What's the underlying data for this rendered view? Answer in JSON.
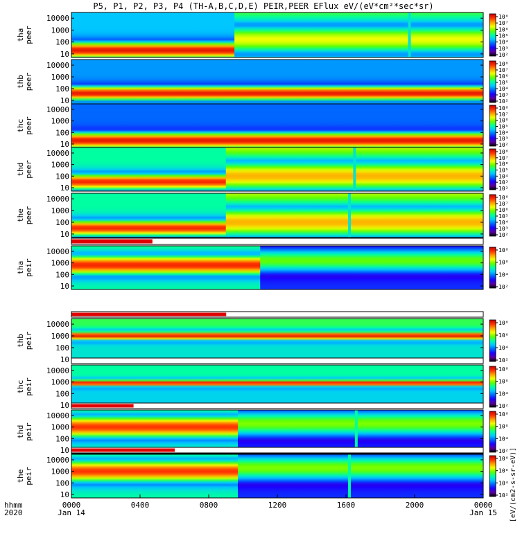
{
  "chart_data": {
    "type": "heatmap",
    "title": "P5, P1, P2, P3, P4 (TH-A,B,C,D,E) PEIR,PEER EFlux eV/(eV*cm²*sec*sr)",
    "time_axis": {
      "label_line1": "hhmm",
      "label_line2": "2020",
      "range_hours": [
        0,
        24
      ],
      "ticks": [
        {
          "hour": 0,
          "label": "0000",
          "sublabel": "Jan 14"
        },
        {
          "hour": 4,
          "label": "0400",
          "sublabel": ""
        },
        {
          "hour": 8,
          "label": "0800",
          "sublabel": ""
        },
        {
          "hour": 12,
          "label": "1200",
          "sublabel": ""
        },
        {
          "hour": 16,
          "label": "1600",
          "sublabel": ""
        },
        {
          "hour": 20,
          "label": "2000",
          "sublabel": ""
        },
        {
          "hour": 24,
          "label": "0000",
          "sublabel": "Jan 15"
        }
      ]
    },
    "energy_axis": {
      "scale": "log",
      "range_eV": [
        5,
        30000
      ],
      "tick_values": [
        10,
        100,
        1000,
        10000
      ],
      "tick_labels": [
        "10",
        "100",
        "1000",
        "10000"
      ]
    },
    "colorbar": {
      "scale": "log",
      "unit_label": "[eV/(cm2-s-sr-eV)]",
      "ticks_electron": [
        "10²",
        "10³",
        "10⁴",
        "10⁵",
        "10⁶",
        "10⁷",
        "10⁸"
      ],
      "ticks_ion": [
        "10²",
        "10⁴",
        "10⁶",
        "10⁸"
      ]
    },
    "colormap": [
      "#000000",
      "#5a00a0",
      "#1a00ff",
      "#0066ff",
      "#00c8ff",
      "#00ffa0",
      "#60ff00",
      "#f0ff00",
      "#ffa000",
      "#ff3000",
      "#c40000"
    ],
    "panels": [
      {
        "label_line1": "tha",
        "label_line2": "peer",
        "species": "electron",
        "flag_end_hour": 0,
        "profile": {
          "peak_log10_eV": 1.3,
          "width": 0.8,
          "peak_level": 0.95,
          "bg_level": 0.5,
          "bg_at_high_e": 0.4
        },
        "segments": [
          {
            "from_hour": 9.5,
            "to_hour": 24,
            "peak_log10_eV": 2.2,
            "width": 1.4,
            "peak_level": 0.7,
            "bg_level": 0.6
          }
        ],
        "spikes": [
          {
            "hour": 19.7,
            "level": 0.45
          }
        ]
      },
      {
        "label_line1": "thb",
        "label_line2": "peer",
        "species": "electron",
        "flag_end_hour": 0,
        "profile": {
          "peak_log10_eV": 1.6,
          "width": 0.7,
          "peak_level": 0.95,
          "bg_level": 0.45,
          "bg_at_high_e": 0.35
        },
        "segments": [],
        "spikes": []
      },
      {
        "label_line1": "thc",
        "label_line2": "peer",
        "species": "electron",
        "flag_end_hour": 0,
        "profile": {
          "peak_log10_eV": 1.3,
          "width": 0.8,
          "peak_level": 0.95,
          "bg_level": 0.38,
          "bg_at_high_e": 0.3
        },
        "segments": [],
        "spikes": []
      },
      {
        "label_line1": "thd",
        "label_line2": "peer",
        "species": "electron",
        "flag_end_hour": 0,
        "profile": {
          "peak_log10_eV": 1.5,
          "width": 0.8,
          "peak_level": 0.92,
          "bg_level": 0.55,
          "bg_at_high_e": 0.5
        },
        "segments": [
          {
            "from_hour": 9.0,
            "to_hour": 24,
            "peak_log10_eV": 2.0,
            "width": 1.5,
            "peak_level": 0.78,
            "bg_level": 0.7
          }
        ],
        "spikes": [
          {
            "hour": 16.5,
            "level": 0.45
          }
        ]
      },
      {
        "label_line1": "the",
        "label_line2": "peer",
        "species": "electron",
        "flag_end_hour": 0,
        "profile": {
          "peak_log10_eV": 1.5,
          "width": 0.8,
          "peak_level": 0.92,
          "bg_level": 0.55,
          "bg_at_high_e": 0.5
        },
        "segments": [
          {
            "from_hour": 9.0,
            "to_hour": 24,
            "peak_log10_eV": 2.0,
            "width": 1.5,
            "peak_level": 0.78,
            "bg_level": 0.7
          }
        ],
        "spikes": [
          {
            "hour": 16.2,
            "level": 0.45
          }
        ]
      },
      {
        "label_line1": "tha",
        "label_line2": "peir",
        "species": "ion",
        "flag_end_hour": 4.7,
        "profile": {
          "peak_log10_eV": 2.8,
          "width": 1.0,
          "peak_level": 0.92,
          "bg_level": 0.5,
          "bg_at_high_e": 0.55
        },
        "segments": [
          {
            "from_hour": 11.0,
            "to_hour": 24,
            "peak_log10_eV": 3.2,
            "width": 1.2,
            "peak_level": 0.6,
            "bg_level": 0.25
          }
        ],
        "spikes": []
      },
      {
        "label_line1": "thb",
        "label_line2": "peir",
        "species": "ion",
        "flag_end_hour": 9.0,
        "profile": {
          "peak_log10_eV": 3.0,
          "width": 0.45,
          "peak_level": 0.95,
          "bg_level": 0.45,
          "bg_at_high_e": 0.55
        },
        "segments": [],
        "spikes": []
      },
      {
        "label_line1": "thc",
        "label_line2": "peir",
        "species": "ion",
        "flag_end_hour": 0,
        "profile": {
          "peak_log10_eV": 2.9,
          "width": 0.35,
          "peak_level": 0.95,
          "bg_level": 0.42,
          "bg_at_high_e": 0.5
        },
        "segments": [],
        "spikes": []
      },
      {
        "label_line1": "thd",
        "label_line2": "peir",
        "species": "ion",
        "flag_end_hour": 3.6,
        "profile": {
          "peak_log10_eV": 3.0,
          "width": 1.1,
          "peak_level": 0.9,
          "bg_level": 0.5,
          "bg_at_high_e": 0.6
        },
        "segments": [
          {
            "from_hour": 9.7,
            "to_hour": 24,
            "peak_log10_eV": 3.3,
            "width": 1.3,
            "peak_level": 0.62,
            "bg_level": 0.25
          }
        ],
        "spikes": [
          {
            "hour": 16.6,
            "level": 0.5
          }
        ]
      },
      {
        "label_line1": "the",
        "label_line2": "peir",
        "species": "ion",
        "flag_end_hour": 6.0,
        "profile": {
          "peak_log10_eV": 3.0,
          "width": 1.1,
          "peak_level": 0.9,
          "bg_level": 0.5,
          "bg_at_high_e": 0.6
        },
        "segments": [
          {
            "from_hour": 9.7,
            "to_hour": 24,
            "peak_log10_eV": 3.3,
            "width": 1.3,
            "peak_level": 0.62,
            "bg_level": 0.25
          }
        ],
        "spikes": [
          {
            "hour": 16.2,
            "level": 0.5
          }
        ]
      }
    ]
  }
}
